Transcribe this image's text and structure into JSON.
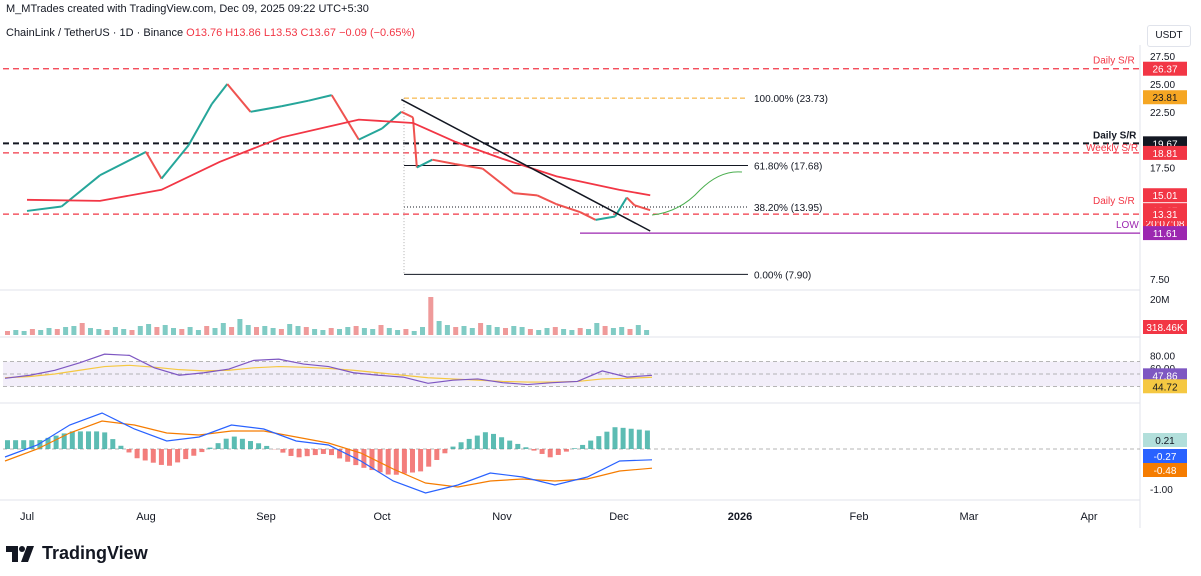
{
  "header": {
    "created_by": "M_MTrades created with TradingView.com, Dec 09, 2025 09:22 UTC+5:30",
    "symbol": "ChainLink / TetherUS · 1D · Binance",
    "ohlc": "O13.76 H13.86 L13.53 C13.67 −0.09 (−0.65%)",
    "currency": "USDT"
  },
  "brand": {
    "name": "TradingView"
  },
  "chart_data": {
    "type": "candlestick",
    "symbol": "ChainLink / TetherUS",
    "interval": "1D",
    "exchange": "Binance",
    "ohlc": {
      "open": 13.76,
      "high": 13.86,
      "low": 13.53,
      "close": 13.67,
      "change": -0.09,
      "change_pct": -0.65
    },
    "x_ticks": [
      "Jul",
      "Aug",
      "Sep",
      "Oct",
      "Nov",
      "Dec",
      "2026",
      "Feb",
      "Mar",
      "Apr"
    ],
    "y_ticks": [
      27.5,
      25.0,
      22.5,
      17.5,
      7.5
    ],
    "y_range": [
      6.5,
      28.5
    ],
    "close_series": {
      "dates": [
        "Jul 1",
        "Jul 10",
        "Jul 20",
        "Aug 1",
        "Aug 5",
        "Aug 12",
        "Aug 18",
        "Aug 22",
        "Aug 28",
        "Sep 5",
        "Sep 12",
        "Sep 18",
        "Sep 25",
        "Oct 1",
        "Oct 6",
        "Oct 9",
        "Oct 10",
        "Oct 14",
        "Oct 20",
        "Oct 27",
        "Nov 4",
        "Nov 10",
        "Nov 15",
        "Nov 21",
        "Nov 25",
        "Nov 30",
        "Dec 3",
        "Dec 5",
        "Dec 9"
      ],
      "close": [
        13.6,
        14.0,
        16.8,
        18.9,
        16.5,
        19.5,
        23.2,
        25.0,
        22.5,
        23.0,
        23.5,
        24.0,
        20.0,
        21.0,
        22.5,
        22.0,
        17.5,
        18.2,
        17.8,
        17.4,
        15.2,
        15.0,
        14.2,
        13.5,
        12.8,
        13.1,
        14.8,
        14.1,
        13.67
      ]
    },
    "ma_series": {
      "color": "#f23645",
      "dates": [
        "Jul 1",
        "Jul 20",
        "Aug 5",
        "Aug 20",
        "Sep 5",
        "Sep 25",
        "Oct 9",
        "Oct 20",
        "Nov 1",
        "Nov 15",
        "Dec 1",
        "Dec 9"
      ],
      "values": [
        14.6,
        14.5,
        15.5,
        18.0,
        20.2,
        21.8,
        21.5,
        19.8,
        18.3,
        16.7,
        15.5,
        15.01
      ]
    },
    "fib_levels": [
      {
        "label": "100.00% (23.73)",
        "value": 23.73
      },
      {
        "label": "61.80% (17.68)",
        "value": 17.68
      },
      {
        "label": "38.20% (13.95)",
        "value": 13.95
      },
      {
        "label": "0.00% (7.90)",
        "value": 7.9
      }
    ],
    "levels": [
      {
        "label": "Daily S/R",
        "value": 26.37,
        "color": "#f23645",
        "style": "dashed"
      },
      {
        "label": "Daily S/R",
        "value": 19.67,
        "color": "#131722",
        "style": "dashed"
      },
      {
        "label": "Weekly S/R",
        "value": 18.81,
        "color": "#f23645",
        "style": "dashed"
      },
      {
        "label": "Daily S/R",
        "value": 13.31,
        "color": "#f23645",
        "style": "dashed"
      },
      {
        "label": "LOW",
        "value": 11.61,
        "color": "#9c27b0",
        "style": "solid"
      }
    ],
    "price_tags": [
      {
        "text": "26.37",
        "bg": "#f23645",
        "fg": "#ffffff",
        "value": 26.37
      },
      {
        "text": "23.81",
        "bg": "#f5a623",
        "fg": "#131722",
        "value": 23.81
      },
      {
        "text": "19.67",
        "bg": "#131722",
        "fg": "#ffffff",
        "value": 19.67
      },
      {
        "text": "18.81",
        "bg": "#f23645",
        "fg": "#ffffff",
        "value": 18.81
      },
      {
        "text": "15.01",
        "bg": "#f23645",
        "fg": "#ffffff",
        "value": 15.01
      },
      {
        "text": "13.67",
        "bg": "#f23645",
        "fg": "#ffffff",
        "value": 13.67
      },
      {
        "text": "20:07:08",
        "bg": "#f23645",
        "fg": "#ffffff",
        "value": 13.67
      },
      {
        "text": "13.31",
        "bg": "#f23645",
        "fg": "#ffffff",
        "value": 13.31
      },
      {
        "text": "11.61",
        "bg": "#9c27b0",
        "fg": "#ffffff",
        "value": 11.61
      }
    ],
    "trendline": {
      "from": {
        "date": "Oct 6",
        "value": 23.6
      },
      "to": {
        "date": "Dec 9",
        "value": 11.8
      }
    },
    "volume": {
      "axis_label": "20M",
      "last": "318.46K",
      "last_color": "#f23645"
    },
    "rsi": {
      "y_ticks": [
        80.0,
        60.0
      ],
      "rsi_last": 47.86,
      "rsi_color": "#7e57c2",
      "signal_last": 44.72,
      "signal_color": "#f5c842",
      "overbought": 70,
      "oversold": 30,
      "rsi_series": [
        43,
        48,
        56,
        68,
        82,
        80,
        60,
        48,
        52,
        58,
        72,
        74,
        66,
        62,
        52,
        48,
        45,
        35,
        40,
        42,
        36,
        33,
        36,
        38,
        55,
        45,
        47.86
      ],
      "signal_series": [
        44,
        46,
        50,
        56,
        62,
        64,
        61,
        57,
        55,
        56,
        60,
        62,
        61,
        59,
        56,
        52,
        48,
        44,
        42,
        40,
        38,
        37,
        37,
        38,
        42,
        43,
        44.72
      ]
    },
    "macd": {
      "y_ticks": [
        -1.0
      ],
      "histogram_last": 0.21,
      "histogram_color": "#26a69a",
      "macd_last": -0.27,
      "macd_color": "#2962ff",
      "signal_last": -0.48,
      "signal_color": "#f57c00",
      "macd_series": [
        -0.2,
        0.1,
        0.6,
        0.9,
        0.5,
        0.2,
        0.3,
        0.6,
        0.5,
        0.2,
        0.1,
        -0.3,
        -0.8,
        -1.1,
        -0.9,
        -0.6,
        -0.7,
        -0.9,
        -0.7,
        -0.3,
        -0.27
      ],
      "signal_series": [
        -0.3,
        0.0,
        0.4,
        0.7,
        0.6,
        0.4,
        0.35,
        0.45,
        0.45,
        0.3,
        0.15,
        -0.1,
        -0.5,
        -0.85,
        -0.95,
        -0.8,
        -0.75,
        -0.8,
        -0.75,
        -0.55,
        -0.48
      ]
    }
  }
}
